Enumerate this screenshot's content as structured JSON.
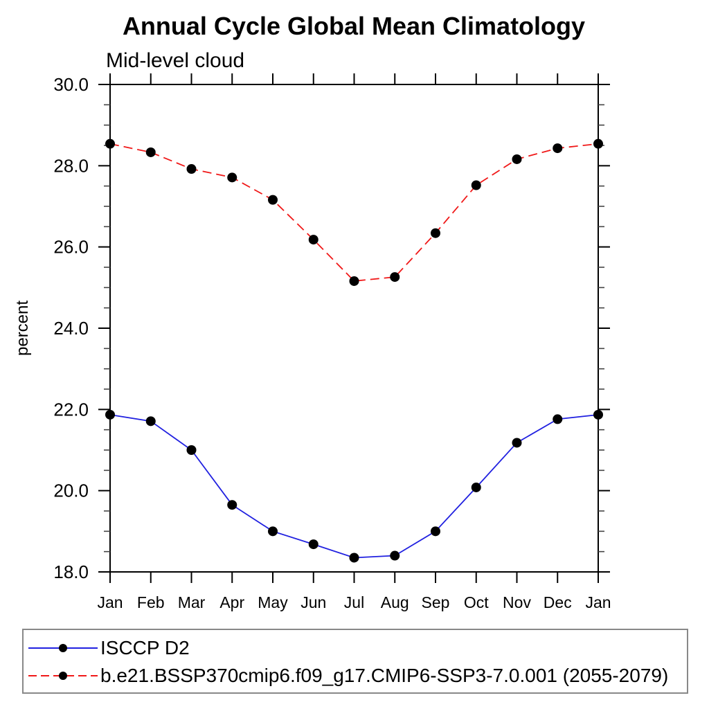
{
  "page": {
    "background": "#ffffff"
  },
  "chart_data": {
    "type": "line",
    "title": "Annual Cycle Global Mean Climatology",
    "subtitle": "Mid-level cloud",
    "ylabel": "percent",
    "xlabel": "",
    "x_labels": [
      "Jan",
      "Feb",
      "Mar",
      "Apr",
      "May",
      "Jun",
      "Jul",
      "Aug",
      "Sep",
      "Oct",
      "Nov",
      "Dec",
      "Jan"
    ],
    "ylim": [
      18.0,
      30.0
    ],
    "ytick_major_interval": 2.0,
    "ytick_minor_interval": 0.5,
    "ytick_labels": [
      "18.0",
      "20.0",
      "22.0",
      "24.0",
      "26.0",
      "28.0",
      "30.0"
    ],
    "grid": false,
    "legend_position": "bottom",
    "marker": {
      "shape": "circle",
      "color": "#000000"
    },
    "series": [
      {
        "name": "ISCCP D2",
        "color": "#2020e0",
        "style": "solid",
        "values": [
          21.87,
          21.71,
          21.0,
          19.65,
          19.0,
          18.68,
          18.35,
          18.4,
          19.0,
          20.08,
          21.18,
          21.76,
          21.87
        ]
      },
      {
        "name": "b.e21.BSSP370cmip6.f09_g17.CMIP6-SSP3-7.0.001 (2055-2079)",
        "color": "#f01818",
        "style": "dashed",
        "values": [
          28.54,
          28.33,
          27.92,
          27.71,
          27.16,
          26.18,
          25.16,
          25.26,
          26.34,
          27.52,
          28.16,
          28.43,
          28.54
        ]
      }
    ]
  }
}
